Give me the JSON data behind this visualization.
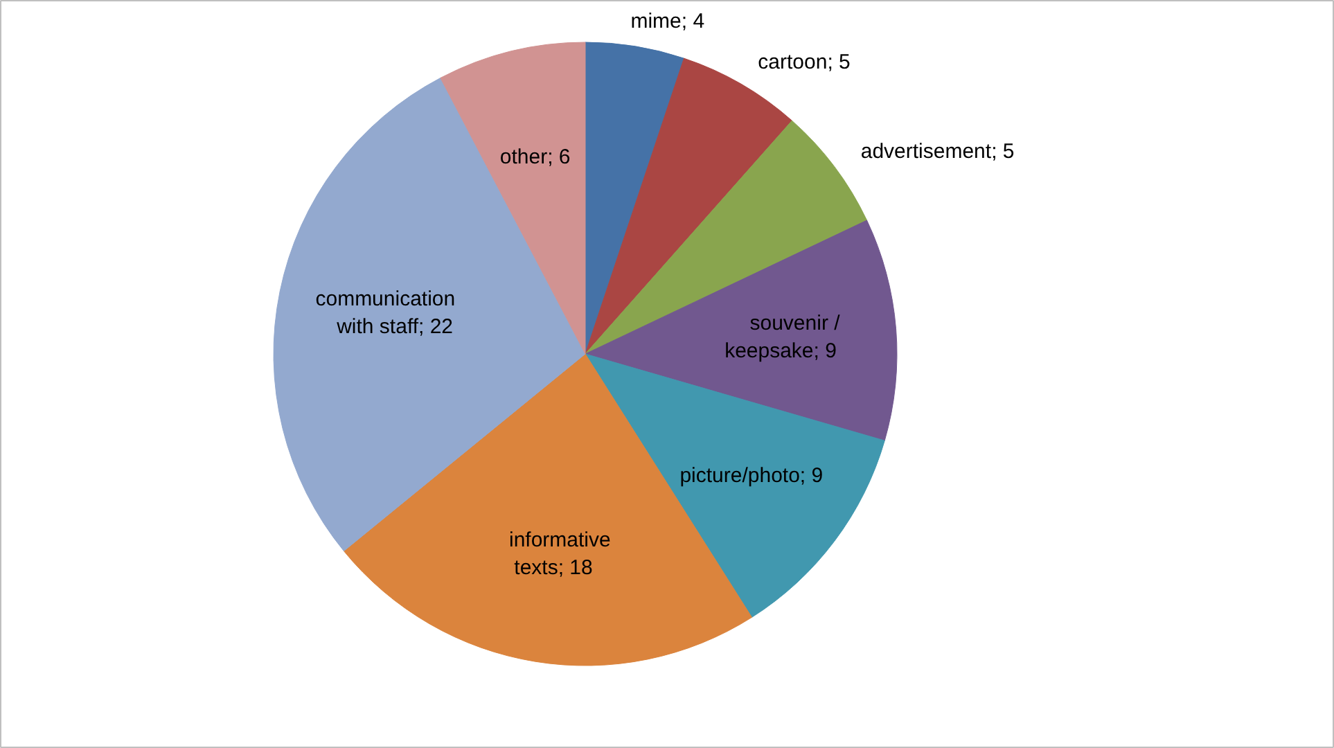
{
  "chart_data": {
    "type": "pie",
    "categories": [
      "mime",
      "cartoon",
      "advertisement",
      "souvenir / keepsake",
      "picture/photo",
      "informative texts",
      "communication with staff",
      "other"
    ],
    "values": [
      4,
      5,
      5,
      9,
      9,
      18,
      22,
      6
    ],
    "colors": [
      "#4572a7",
      "#aa4643",
      "#89a54e",
      "#71588f",
      "#4198af",
      "#db843d",
      "#93a9cf",
      "#d19392"
    ],
    "value_labels": [
      "; 4",
      "; 5",
      "; 5",
      "; 9",
      "; 9",
      "; 18",
      "; 22",
      "; 6"
    ]
  }
}
